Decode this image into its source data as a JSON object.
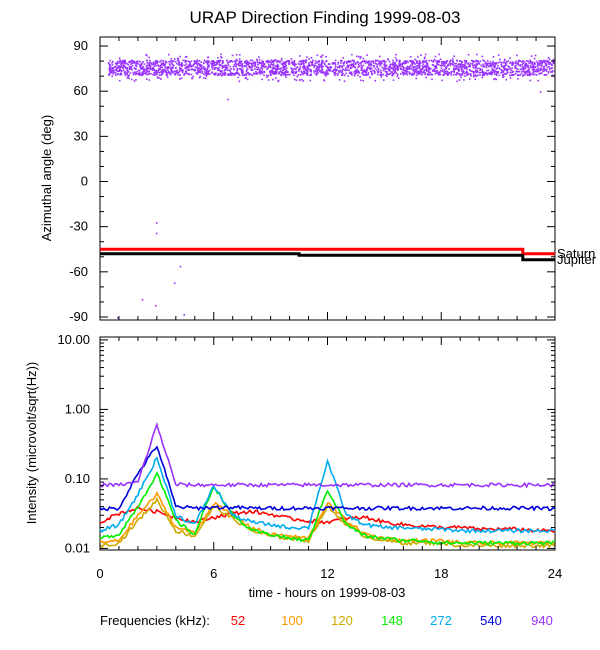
{
  "chart_data": [
    {
      "type": "scatter",
      "title": "URAP Direction Finding  1999-08-03",
      "xlabel": "",
      "ylabel": "Azimuthal angle (deg)",
      "xlim": [
        0,
        24
      ],
      "ylim": [
        -92,
        96
      ],
      "yticks": [
        -90,
        -60,
        -30,
        0,
        30,
        60,
        90
      ],
      "series": [
        {
          "style": "scatter-band",
          "color": "#9933ff",
          "band": {
            "x": [
              0.4,
              23.9
            ],
            "center": 76,
            "spread": 5,
            "dense_spread": 9
          },
          "outliers": [
            {
              "x": 6.7,
              "y": 55
            },
            {
              "x": 23.2,
              "y": 60
            },
            {
              "x": 2.95,
              "y": -27
            },
            {
              "x": 2.95,
              "y": -34
            },
            {
              "x": 4.2,
              "y": -56
            },
            {
              "x": 2.2,
              "y": -78
            },
            {
              "x": 2.9,
              "y": -82
            },
            {
              "x": 3.9,
              "y": -67
            },
            {
              "x": 4.4,
              "y": -88
            },
            {
              "x": 0.9,
              "y": -90
            }
          ]
        },
        {
          "name": "Saturn",
          "style": "step",
          "color": "#ff0000",
          "points": [
            [
              0,
              -45
            ],
            [
              22.3,
              -45
            ],
            [
              22.3,
              -48
            ],
            [
              24,
              -48
            ]
          ]
        },
        {
          "name": "Jupiter",
          "style": "step",
          "color": "#000000",
          "points": [
            [
              0,
              -48
            ],
            [
              10.5,
              -48
            ],
            [
              10.5,
              -49
            ],
            [
              22.3,
              -49
            ],
            [
              22.3,
              -52
            ],
            [
              24,
              -52
            ]
          ]
        }
      ]
    },
    {
      "type": "line",
      "xlabel": "time - hours on 1999-08-03",
      "ylabel": "Intensity (microvolt/sqrt(Hz))",
      "xlim": [
        0,
        24
      ],
      "xticks": [
        0,
        6,
        12,
        18,
        24
      ],
      "yscale": "log",
      "ylim": [
        0.0095,
        11
      ],
      "yticks": [
        0.01,
        0.1,
        1.0,
        10.0
      ],
      "ytick_labels": [
        "0.01",
        "0.10",
        "1.00",
        "10.00"
      ],
      "legend": {
        "title": "Frequencies (kHz):",
        "placement": "bottom"
      },
      "series": [
        {
          "name": "52",
          "color": "#ff0000",
          "x": [
            0,
            1,
            2,
            3,
            4,
            5,
            6,
            7,
            8,
            9,
            10,
            11,
            12,
            13,
            14,
            15,
            16,
            17,
            18,
            19,
            20,
            21,
            22,
            23,
            24
          ],
          "values": [
            0.024,
            0.032,
            0.038,
            0.034,
            0.028,
            0.024,
            0.028,
            0.032,
            0.034,
            0.031,
            0.027,
            0.025,
            0.024,
            0.027,
            0.028,
            0.024,
            0.022,
            0.021,
            0.02,
            0.02,
            0.019,
            0.019,
            0.019,
            0.018,
            0.018
          ]
        },
        {
          "name": "100",
          "color": "#ff9900",
          "x": [
            0,
            1,
            2,
            3,
            4,
            5,
            6,
            7,
            8,
            9,
            10,
            11,
            12,
            13,
            14,
            15,
            16,
            17,
            18,
            19,
            20,
            21,
            22,
            23,
            24
          ],
          "values": [
            0.012,
            0.013,
            0.03,
            0.06,
            0.02,
            0.017,
            0.045,
            0.03,
            0.02,
            0.016,
            0.015,
            0.014,
            0.045,
            0.025,
            0.016,
            0.014,
            0.013,
            0.013,
            0.013,
            0.012,
            0.012,
            0.012,
            0.012,
            0.012,
            0.012
          ]
        },
        {
          "name": "120",
          "color": "#ccaa00",
          "x": [
            0,
            1,
            2,
            3,
            4,
            5,
            6,
            7,
            8,
            9,
            10,
            11,
            12,
            13,
            14,
            15,
            16,
            17,
            18,
            19,
            20,
            21,
            22,
            23,
            24
          ],
          "values": [
            0.011,
            0.012,
            0.025,
            0.05,
            0.018,
            0.015,
            0.04,
            0.027,
            0.018,
            0.015,
            0.014,
            0.013,
            0.04,
            0.022,
            0.015,
            0.013,
            0.012,
            0.012,
            0.012,
            0.011,
            0.011,
            0.011,
            0.011,
            0.011,
            0.011
          ]
        },
        {
          "name": "148",
          "color": "#00ee00",
          "x": [
            0,
            1,
            2,
            3,
            4,
            5,
            6,
            7,
            8,
            9,
            10,
            11,
            12,
            13,
            14,
            15,
            16,
            17,
            18,
            19,
            20,
            21,
            22,
            23,
            24
          ],
          "values": [
            0.014,
            0.016,
            0.04,
            0.12,
            0.025,
            0.016,
            0.08,
            0.03,
            0.018,
            0.016,
            0.014,
            0.013,
            0.07,
            0.022,
            0.015,
            0.014,
            0.013,
            0.013,
            0.012,
            0.012,
            0.012,
            0.012,
            0.012,
            0.012,
            0.012
          ]
        },
        {
          "name": "272",
          "color": "#00aaee",
          "x": [
            0,
            1,
            2,
            3,
            4,
            5,
            6,
            7,
            8,
            9,
            10,
            11,
            12,
            13,
            14,
            15,
            16,
            17,
            18,
            19,
            20,
            21,
            22,
            23,
            24
          ],
          "values": [
            0.018,
            0.022,
            0.06,
            0.2,
            0.03,
            0.022,
            0.08,
            0.03,
            0.024,
            0.022,
            0.02,
            0.02,
            0.18,
            0.03,
            0.022,
            0.02,
            0.02,
            0.019,
            0.019,
            0.018,
            0.018,
            0.018,
            0.018,
            0.018,
            0.018
          ]
        },
        {
          "name": "540",
          "color": "#0000dd",
          "x": [
            0,
            1,
            2,
            3,
            4,
            5,
            6,
            7,
            8,
            9,
            10,
            11,
            12,
            13,
            14,
            15,
            16,
            17,
            18,
            19,
            20,
            21,
            22,
            23,
            24
          ],
          "values": [
            0.037,
            0.038,
            0.12,
            0.3,
            0.04,
            0.038,
            0.039,
            0.039,
            0.038,
            0.038,
            0.038,
            0.038,
            0.038,
            0.038,
            0.038,
            0.038,
            0.038,
            0.038,
            0.038,
            0.038,
            0.038,
            0.038,
            0.038,
            0.038,
            0.037
          ]
        },
        {
          "name": "940",
          "color": "#9933ff",
          "x": [
            0,
            1,
            2,
            3,
            4,
            5,
            6,
            7,
            8,
            9,
            10,
            11,
            12,
            13,
            14,
            15,
            16,
            17,
            18,
            19,
            20,
            21,
            22,
            23,
            24
          ],
          "values": [
            0.082,
            0.082,
            0.09,
            0.6,
            0.083,
            0.082,
            0.082,
            0.082,
            0.082,
            0.082,
            0.082,
            0.082,
            0.082,
            0.082,
            0.082,
            0.082,
            0.082,
            0.082,
            0.082,
            0.082,
            0.082,
            0.082,
            0.082,
            0.082,
            0.082
          ]
        }
      ]
    }
  ]
}
